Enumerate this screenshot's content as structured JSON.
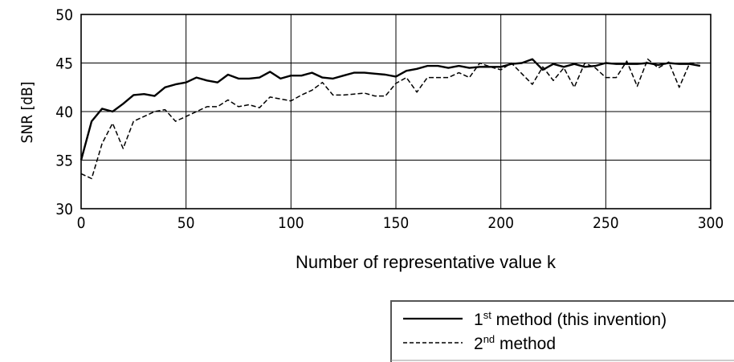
{
  "chart_data": {
    "type": "line",
    "xlabel": "Number of representative value k",
    "ylabel": "SNR [dB]",
    "xlim": [
      0,
      300
    ],
    "ylim": [
      30,
      50
    ],
    "xticks": [
      "0",
      "50",
      "100",
      "150",
      "200",
      "250",
      "300"
    ],
    "yticks": [
      "30",
      "35",
      "40",
      "45",
      "50"
    ],
    "grid": true,
    "legend_position": "bottom-right, below plot",
    "series": [
      {
        "name": "1st method (this invention)",
        "legend": {
          "pre": "1",
          "sup": "st",
          "post": " method (this invention)"
        },
        "style": "solid",
        "color": "#000000",
        "x": [
          0,
          5,
          10,
          15,
          20,
          25,
          30,
          35,
          40,
          45,
          50,
          55,
          60,
          65,
          70,
          75,
          80,
          85,
          90,
          95,
          100,
          105,
          110,
          115,
          120,
          125,
          130,
          135,
          140,
          145,
          150,
          155,
          160,
          165,
          170,
          175,
          180,
          185,
          190,
          195,
          200,
          205,
          210,
          215,
          220,
          225,
          230,
          235,
          240,
          245,
          250,
          255,
          260,
          265,
          270,
          275,
          280,
          285,
          290,
          295
        ],
        "values": [
          35,
          39,
          40.3,
          40,
          40.8,
          41.7,
          41.8,
          41.6,
          42.5,
          42.8,
          43,
          43.5,
          43.2,
          43.0,
          43.8,
          43.4,
          43.4,
          43.5,
          44.1,
          43.4,
          43.7,
          43.7,
          44.0,
          43.5,
          43.4,
          43.7,
          44,
          44,
          43.9,
          43.8,
          43.6,
          44.2,
          44.4,
          44.7,
          44.7,
          44.5,
          44.7,
          44.5,
          44.6,
          44.6,
          44.6,
          44.9,
          45.0,
          45.4,
          44.3,
          44.9,
          44.6,
          44.9,
          44.6,
          44.7,
          45.0,
          44.9,
          44.9,
          44.9,
          45.0,
          44.8,
          45.0,
          44.9,
          44.9,
          44.7
        ]
      },
      {
        "name": "2nd method",
        "legend": {
          "pre": "2",
          "sup": "nd",
          "post": " method"
        },
        "style": "dashed",
        "color": "#000000",
        "x": [
          0,
          5,
          10,
          15,
          20,
          25,
          30,
          35,
          40,
          45,
          50,
          55,
          60,
          65,
          70,
          75,
          80,
          85,
          90,
          95,
          100,
          105,
          110,
          115,
          120,
          125,
          130,
          135,
          140,
          145,
          150,
          155,
          160,
          165,
          170,
          175,
          180,
          185,
          190,
          195,
          200,
          205,
          210,
          215,
          220,
          225,
          230,
          235,
          240,
          245,
          250,
          255,
          260,
          265,
          270,
          275,
          280,
          285,
          290,
          295
        ],
        "values": [
          33.6,
          33.1,
          36.7,
          38.8,
          36.2,
          39,
          39.5,
          40.0,
          40.2,
          39.0,
          39.5,
          40.0,
          40.5,
          40.5,
          41.2,
          40.5,
          40.7,
          40.4,
          41.5,
          41.3,
          41.1,
          41.7,
          42.2,
          43,
          41.7,
          41.7,
          41.8,
          41.9,
          41.6,
          41.6,
          42.9,
          43.5,
          42.0,
          43.5,
          43.5,
          43.5,
          44.0,
          43.5,
          45,
          44.6,
          44.3,
          45.0,
          43.9,
          42.8,
          44.6,
          43.2,
          44.5,
          42.5,
          45.0,
          44.5,
          43.5,
          43.5,
          45.2,
          42.6,
          45.4,
          44.5,
          45.1,
          42.5,
          45.0,
          45.0
        ]
      }
    ]
  }
}
